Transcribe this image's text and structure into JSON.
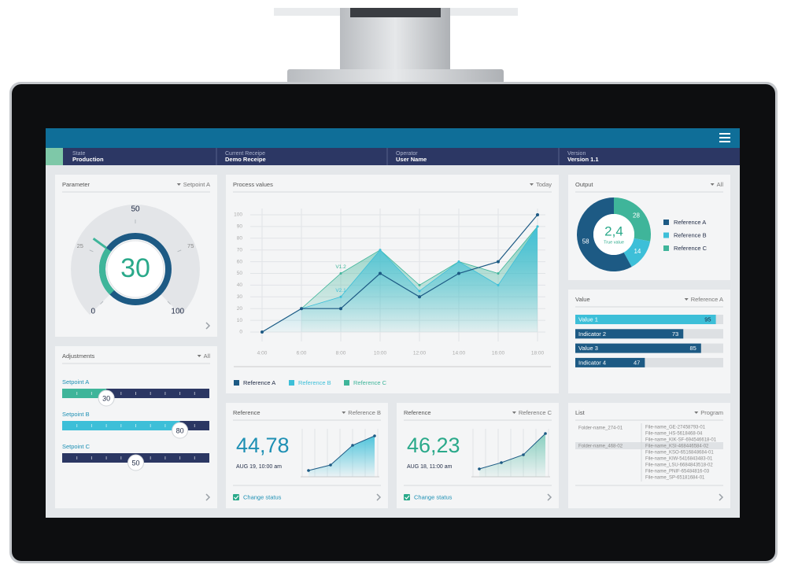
{
  "header": {
    "fields": [
      {
        "label": "State",
        "value": "Production"
      },
      {
        "label": "Current Receipe",
        "value": "Demo Receipe"
      },
      {
        "label": "Operator",
        "value": "User Name"
      },
      {
        "label": "Version",
        "value": "Version 1.1"
      }
    ]
  },
  "parameter": {
    "title": "Parameter",
    "selector": "Setpoint A",
    "value": 30,
    "ticks": [
      0,
      25,
      50,
      75,
      100
    ]
  },
  "adjustments": {
    "title": "Adjustments",
    "selector": "All",
    "range": [
      0,
      100
    ],
    "setpoints": [
      {
        "label": "Setpoint A",
        "value": 30,
        "color": "#3fb59a"
      },
      {
        "label": "Setpoint B",
        "value": 80,
        "color": "#3dbfd8"
      },
      {
        "label": "Setpoint C",
        "value": 50,
        "color": "#2b3763"
      }
    ]
  },
  "process": {
    "type": "area",
    "title": "Process values",
    "selector": "Today",
    "categories": [
      "4:00",
      "6:00",
      "8:00",
      "10:00",
      "12:00",
      "14:00",
      "16:00",
      "18:00"
    ],
    "ylim": [
      0,
      100
    ],
    "yticks": [
      0,
      10,
      20,
      30,
      40,
      50,
      60,
      70,
      80,
      90,
      100
    ],
    "grid": true,
    "series": [
      {
        "name": "Reference A",
        "color": "#1d5a84",
        "values": [
          0,
          20,
          20,
          50,
          30,
          50,
          60,
          100
        ]
      },
      {
        "name": "Reference B",
        "color": "#3dbfd8",
        "values": [
          0,
          20,
          30,
          70,
          35,
          60,
          40,
          90
        ],
        "annotations": [
          null,
          null,
          "V2.1",
          null,
          null,
          null,
          null,
          null
        ]
      },
      {
        "name": "Reference C",
        "color": "#3fb59a",
        "values": [
          null,
          20,
          50,
          70,
          40,
          60,
          50,
          90
        ],
        "annotations": [
          null,
          null,
          "V1.2",
          null,
          null,
          null,
          null,
          null
        ]
      }
    ]
  },
  "output": {
    "type": "pie",
    "title": "Output",
    "selector": "All",
    "donut": true,
    "categories": [
      "Reference A",
      "Reference B",
      "Reference C"
    ],
    "values": [
      58,
      14,
      28
    ],
    "colors": [
      "#1d5a84",
      "#3dbfd8",
      "#3fb59a"
    ],
    "center_value": "2,4",
    "center_label": "True value"
  },
  "value_panel": {
    "type": "bar",
    "title": "Value",
    "selector": "Reference A",
    "categories": [
      "Value 1",
      "Indicator 2",
      "Value 3",
      "Indicator 4"
    ],
    "values": [
      95,
      73,
      85,
      47
    ],
    "colors": [
      "#3dbfd8",
      "#1d5a84",
      "#1d5a84",
      "#1d5a84"
    ],
    "xlim": [
      0,
      100
    ]
  },
  "references": [
    {
      "title": "Reference",
      "selector": "Reference B",
      "value": "44,78",
      "date": "AUG 19, 10:00 am",
      "checkbox": "Change status",
      "color": "#1e90b4",
      "trend": [
        8,
        15,
        40,
        52
      ],
      "ylim": [
        0,
        60
      ]
    },
    {
      "title": "Reference",
      "selector": "Reference C",
      "value": "46,23",
      "date": "AUG 18, 11:00 am",
      "checkbox": "Change status",
      "color": "#2aa98a",
      "trend": [
        10,
        18,
        28,
        55
      ],
      "ylim": [
        0,
        60
      ]
    }
  ],
  "list": {
    "title": "List",
    "selector": "Program",
    "folders": [
      "Folder-name_274-01",
      "Folder-name_468-02"
    ],
    "files": [
      "File-name_GE-27458793-01",
      "File-name_HS-5618468-04",
      "File-name_KIK-SF-694546618-01",
      "File-name_KSI-468446584-02",
      "File-name_KSO-6516848684-01",
      "File-name_KIW-5416843483-01",
      "File-name_LSU-6684843518-02",
      "File-name_PNIF-65484816-03",
      "File-name_SP-65181684-01"
    ]
  }
}
